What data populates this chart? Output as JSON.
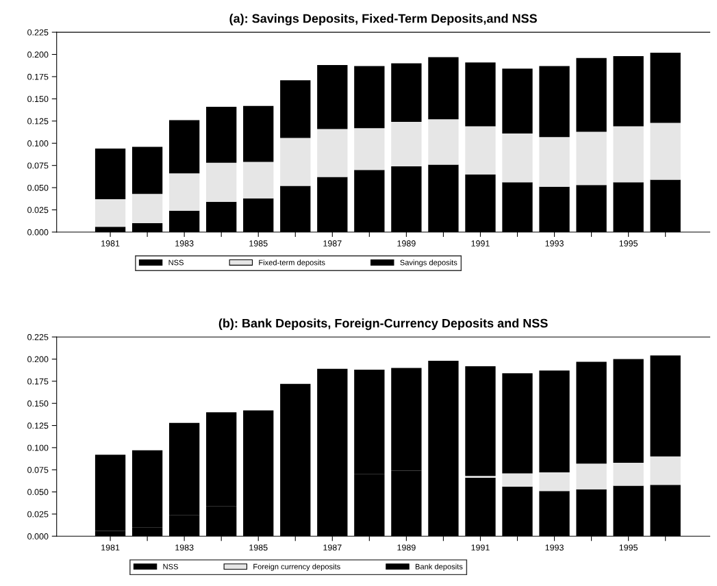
{
  "chart_data": [
    {
      "type": "bar",
      "title": "(a): Savings Deposits, Fixed-Term Deposits,and NSS",
      "stacked": true,
      "legend": "bottom",
      "categories": [
        "1981",
        null,
        "1983",
        null,
        "1985",
        null,
        "1987",
        null,
        "1989",
        null,
        "1991",
        null,
        "1993",
        null,
        "1995",
        null
      ],
      "ylim": [
        0,
        0.225
      ],
      "yticks": [
        {
          "value": 0,
          "label": "0.000"
        },
        {
          "value": 0.025,
          "label": "0.025"
        },
        {
          "value": 0.05,
          "label": "0.050"
        },
        {
          "value": 0.075,
          "label": "0.075"
        },
        {
          "value": 0.1,
          "label": "0.100"
        },
        {
          "value": 0.125,
          "label": "0.125"
        },
        {
          "value": 0.15,
          "label": "0.150"
        },
        {
          "value": 0.175,
          "label": "0.175"
        },
        {
          "value": 0.2,
          "label": "0.200"
        },
        {
          "value": 0.225,
          "label": "0.225"
        }
      ],
      "series": [
        {
          "name": "NSS",
          "color": "#000000",
          "values": [
            0.006,
            0.01,
            0.024,
            0.034,
            0.038,
            0.052,
            0.062,
            0.07,
            0.074,
            0.076,
            0.065,
            0.056,
            0.051,
            0.053,
            0.056,
            0.059
          ]
        },
        {
          "name": "Fixed-term deposits",
          "color": "#e6e6e6",
          "values": [
            0.031,
            0.033,
            0.042,
            0.044,
            0.041,
            0.054,
            0.054,
            0.047,
            0.05,
            0.051,
            0.054,
            0.055,
            0.056,
            0.06,
            0.063,
            0.064
          ]
        },
        {
          "name": "Savings deposits",
          "color": "#000000",
          "values": [
            0.057,
            0.053,
            0.06,
            0.063,
            0.063,
            0.065,
            0.072,
            0.07,
            0.066,
            0.07,
            0.072,
            0.073,
            0.08,
            0.083,
            0.079,
            0.079
          ]
        }
      ]
    },
    {
      "type": "bar",
      "title": "(b): Bank Deposits, Foreign-Currency Deposits and NSS",
      "stacked": true,
      "legend": "bottom",
      "categories": [
        "1981",
        null,
        "1983",
        null,
        "1985",
        null,
        "1987",
        null,
        "1989",
        null,
        "1991",
        null,
        "1993",
        null,
        "1995",
        null
      ],
      "ylim": [
        0,
        0.225
      ],
      "yticks": [
        {
          "value": 0,
          "label": "0.000"
        },
        {
          "value": 0.025,
          "label": "0.025"
        },
        {
          "value": 0.05,
          "label": "0.050"
        },
        {
          "value": 0.075,
          "label": "0.075"
        },
        {
          "value": 0.1,
          "label": "0.100"
        },
        {
          "value": 0.125,
          "label": "0.125"
        },
        {
          "value": 0.15,
          "label": "0.150"
        },
        {
          "value": 0.175,
          "label": "0.175"
        },
        {
          "value": 0.2,
          "label": "0.200"
        },
        {
          "value": 0.225,
          "label": "0.225"
        }
      ],
      "series": [
        {
          "name": "NSS",
          "color": "#000000",
          "values": [
            0.006,
            0.01,
            0.024,
            0.034,
            0.038,
            0.052,
            0.062,
            0.07,
            0.074,
            0.076,
            0.066,
            0.056,
            0.051,
            0.053,
            0.057,
            0.058
          ]
        },
        {
          "name": "Foreign currency deposits",
          "color": "#e6e6e6",
          "values": [
            0,
            0,
            0,
            0,
            0,
            0,
            0,
            0,
            0,
            0,
            0.002,
            0.015,
            0.021,
            0.029,
            0.026,
            0.032
          ]
        },
        {
          "name": "Bank deposits",
          "color": "#000000",
          "values": [
            0.086,
            0.087,
            0.104,
            0.106,
            0.104,
            0.12,
            0.127,
            0.118,
            0.116,
            0.122,
            0.124,
            0.113,
            0.115,
            0.115,
            0.117,
            0.114
          ]
        }
      ]
    }
  ]
}
